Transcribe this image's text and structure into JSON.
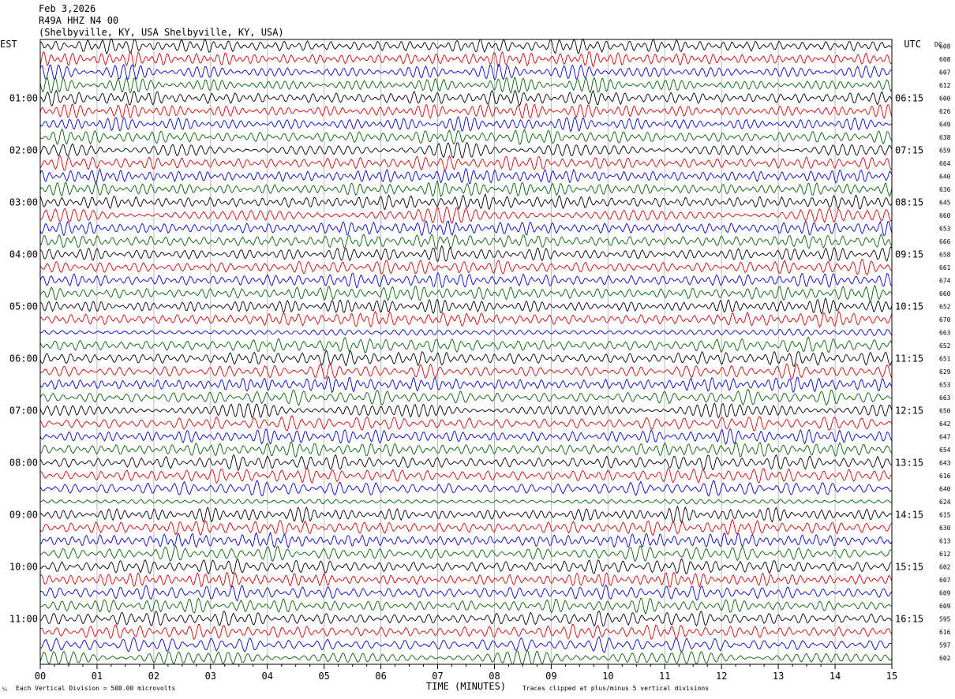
{
  "header": {
    "date": "Feb 3,2026",
    "station": "R49A HHZ N4 00",
    "location": "(Shelbyville, KY, USA Shelbyville, KY, USA)"
  },
  "left_tz": "EST",
  "right_tz": "UTC",
  "dc_label": "DC",
  "corner_mark": "⅍",
  "footer": {
    "scale_note": "Each Vertical Division =  500.00 microvolts",
    "clip_note": "Traces clipped at plus/minus 5 vertical divisions"
  },
  "colors": {
    "trace_cycle": [
      "#000000",
      "#dd0000",
      "#0000dd",
      "#006400"
    ],
    "grid": "#bbbbbb"
  },
  "chart_data": {
    "type": "line",
    "title": "",
    "xlabel": "TIME (MINUTES)",
    "x_ticks": [
      "00",
      "01",
      "02",
      "03",
      "04",
      "05",
      "06",
      "07",
      "08",
      "09",
      "10",
      "11",
      "12",
      "13",
      "14",
      "15"
    ],
    "xlim": [
      0,
      15
    ],
    "trace_count": 48,
    "left_hour_labels": [
      {
        "row": 4,
        "label": "01:00"
      },
      {
        "row": 8,
        "label": "02:00"
      },
      {
        "row": 12,
        "label": "03:00"
      },
      {
        "row": 16,
        "label": "04:00"
      },
      {
        "row": 20,
        "label": "05:00"
      },
      {
        "row": 24,
        "label": "06:00"
      },
      {
        "row": 28,
        "label": "07:00"
      },
      {
        "row": 32,
        "label": "08:00"
      },
      {
        "row": 36,
        "label": "09:00"
      },
      {
        "row": 40,
        "label": "10:00"
      },
      {
        "row": 44,
        "label": "11:00"
      }
    ],
    "right_hour_labels": [
      {
        "row": 4,
        "label": "06:15"
      },
      {
        "row": 8,
        "label": "07:15"
      },
      {
        "row": 12,
        "label": "08:15"
      },
      {
        "row": 16,
        "label": "09:15"
      },
      {
        "row": 20,
        "label": "10:15"
      },
      {
        "row": 24,
        "label": "11:15"
      },
      {
        "row": 28,
        "label": "12:15"
      },
      {
        "row": 32,
        "label": "13:15"
      },
      {
        "row": 36,
        "label": "14:15"
      },
      {
        "row": 40,
        "label": "15:15"
      },
      {
        "row": 44,
        "label": "16:15"
      }
    ],
    "dc_offsets": [
      "608",
      "608",
      "607",
      "612",
      "600",
      "626",
      "649",
      "638",
      "659",
      "664",
      "640",
      "636",
      "645",
      "660",
      "653",
      "666",
      "658",
      "661",
      "674",
      "660",
      "652",
      "670",
      "663",
      "652",
      "651",
      "629",
      "653",
      "663",
      "650",
      "642",
      "647",
      "654",
      "643",
      "616",
      "640",
      "624",
      "615",
      "630",
      "613",
      "612",
      "602",
      "607",
      "609",
      "609",
      "595",
      "616",
      "597",
      "602"
    ]
  }
}
